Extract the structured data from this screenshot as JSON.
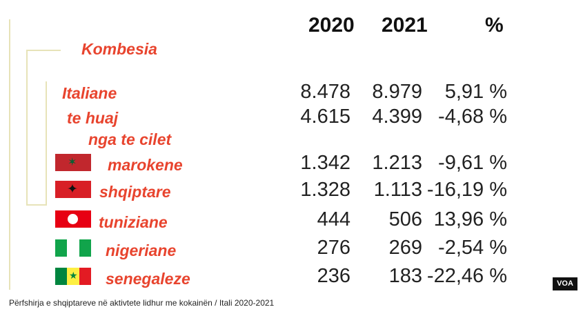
{
  "headers": {
    "y2020": "2020",
    "y2021": "2021",
    "pct": "%"
  },
  "label_kombesia": "Kombesia",
  "label_nga_te_cilet": "nga te cilet",
  "rows": [
    {
      "label": "Italiane",
      "v2020": "8.478",
      "v2021": "8.979",
      "pct": "5,91 %"
    },
    {
      "label": "te huaj",
      "v2020": "4.615",
      "v2021": "4.399",
      "pct": "-4,68 %"
    },
    {
      "label": "marokene",
      "flag": "morocco-flag",
      "v2020": "1.342",
      "v2021": "1.213",
      "pct": "-9,61 %"
    },
    {
      "label": "shqiptare",
      "flag": "albania-flag",
      "v2020": "1.328",
      "v2021": "1.113",
      "pct": "-16,19 %"
    },
    {
      "label": "tuniziane",
      "flag": "tunisia-flag",
      "v2020": "444",
      "v2021": "506",
      "pct": "13,96 %"
    },
    {
      "label": "nigeriane",
      "flag": "nigeria-flag",
      "v2020": "276",
      "v2021": "269",
      "pct": "-2,54 %"
    },
    {
      "label": "senegaleze",
      "flag": "senegal-flag",
      "v2020": "236",
      "v2021": "183",
      "pct": "-22,46 %"
    }
  ],
  "badge": "VOA",
  "caption": "Përfshirja e shqiptareve në aktivtete lidhur me kokainën / Itali 2020-2021",
  "colors": {
    "label_red": "#e8442e",
    "bracket": "#e7e3b8"
  }
}
